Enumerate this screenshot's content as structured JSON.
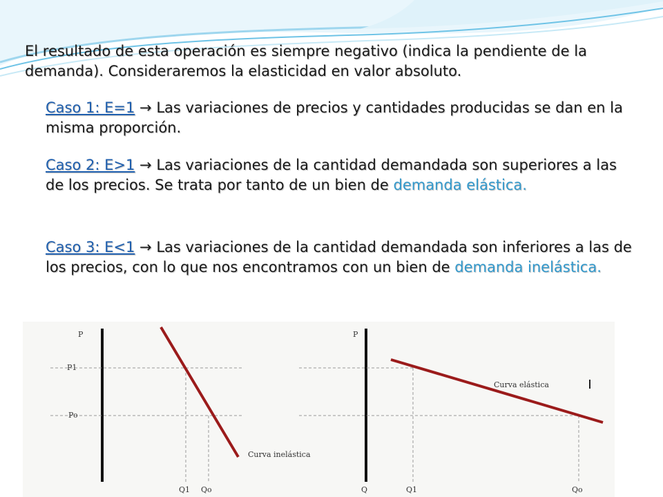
{
  "intro": "El resultado de esta operación es siempre negativo (indica la pendiente de la demanda). Consideraremos la elasticidad en valor absoluto.",
  "cases": [
    {
      "link": "Caso 1: E=1",
      "arrow": "→",
      "text": " Las variaciones de precios y cantidades producidas se dan en la misma proporción.",
      "highlight": ""
    },
    {
      "link": "Caso 2: E>1",
      "arrow": "→",
      "text": " Las variaciones de la cantidad demandada son superiores a las de los precios. Se trata por tanto de un bien de ",
      "highlight": "demanda elástica."
    },
    {
      "link": "Caso 3: E<1",
      "arrow": "→",
      "text": " Las variaciones de la cantidad demandada son inferiores a las de los precios, con lo que nos encontramos con un bien de ",
      "highlight": "demanda inelástica."
    }
  ],
  "figure": {
    "left_panel": {
      "y_axis": "P",
      "p1": "P1",
      "po": "Po",
      "q1": "Q1",
      "qo": "Qo",
      "curve_label": "Curva inelástica"
    },
    "right_panel": {
      "y_axis": "P",
      "origin": "Q",
      "q1": "Q1",
      "qo": "Qo",
      "curve_label": "Curva elástica"
    }
  },
  "colors": {
    "text": "#1a1a1a",
    "link": "#1f5fae",
    "highlight": "#3399cc",
    "curve": "#9b1b1b",
    "deco": "#6ec3e6"
  }
}
